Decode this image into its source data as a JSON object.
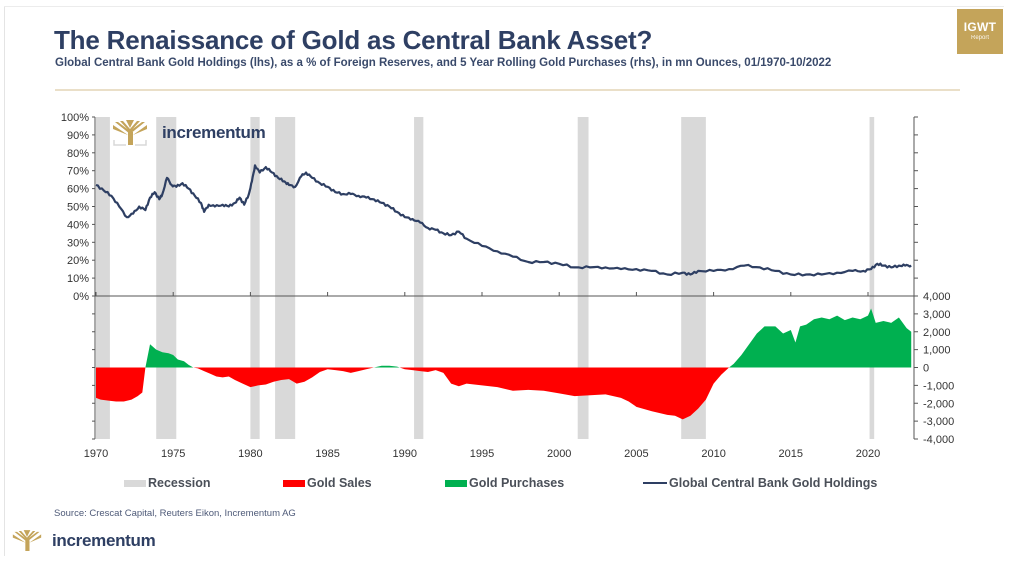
{
  "header": {
    "title": "The Renaissance of Gold as Central Bank Asset?",
    "subtitle": "Global Central Bank Gold Holdings (lhs), as a % of Foreign Reserves, and 5 Year Rolling Gold Purchases (rhs), in mn Ounces, 01/1970-10/2022",
    "badge_main": "IGWT",
    "badge_sub": "Report"
  },
  "branding": {
    "logo_text": "incrementum",
    "logo_color": "#c4a45a"
  },
  "source": "Source: Crescat Capital, Reuters Eikon, Incrementum AG",
  "colors": {
    "line": "#2e3f63",
    "sales": "#ff0000",
    "purchases": "#00b050",
    "recession": "#d9d9d9",
    "axis": "#555555"
  },
  "chart_data": {
    "type": "line+area",
    "title": "The Renaissance of Gold as Central Bank Asset?",
    "xlabel": "",
    "x_range": [
      1970,
      2022.8
    ],
    "x_ticks": [
      "1970",
      "1975",
      "1980",
      "1985",
      "1990",
      "1995",
      "2000",
      "2005",
      "2010",
      "2015",
      "2020"
    ],
    "upper_panel": {
      "axis": "left",
      "ylabel": "Global Central Bank Gold Holdings, % of Foreign Reserves",
      "ylim": [
        0,
        100
      ],
      "y_ticks": [
        "0%",
        "10%",
        "20%",
        "30%",
        "40%",
        "50%",
        "60%",
        "70%",
        "80%",
        "90%",
        "100%"
      ],
      "series": [
        {
          "name": "Global Central Bank Gold Holdings",
          "type": "line",
          "x": [
            1970,
            1970.5,
            1971,
            1971.5,
            1972,
            1972.4,
            1972.8,
            1973.2,
            1973.5,
            1973.8,
            1974.1,
            1974.3,
            1974.6,
            1974.9,
            1975.2,
            1975.6,
            1976,
            1976.4,
            1976.8,
            1977,
            1977.3,
            1977.7,
            1978.2,
            1978.6,
            1979,
            1979.3,
            1979.6,
            1979.9,
            1980.1,
            1980.3,
            1980.6,
            1981,
            1981.4,
            1981.8,
            1982.2,
            1982.5,
            1982.9,
            1983.3,
            1983.6,
            1984,
            1984.5,
            1985,
            1985.5,
            1986,
            1986.5,
            1987,
            1987.5,
            1988,
            1988.5,
            1989,
            1989.5,
            1990,
            1990.5,
            1991,
            1991.5,
            1992,
            1992.5,
            1993,
            1993.5,
            1994,
            1995,
            1996,
            1997,
            1998,
            1999,
            2000,
            2001,
            2002,
            2003,
            2004,
            2005,
            2006,
            2007,
            2008,
            2008.5,
            2009,
            2010,
            2011,
            2012,
            2013,
            2014,
            2015,
            2016,
            2017,
            2018,
            2019,
            2019.7,
            2020.2,
            2020.6,
            2021,
            2021.5,
            2022,
            2022.4,
            2022.8
          ],
          "values": [
            62,
            59,
            56,
            50,
            44,
            46,
            50,
            48,
            55,
            58,
            54,
            57,
            66,
            62,
            61,
            63,
            60,
            56,
            52,
            47,
            51,
            50,
            51,
            50,
            52,
            55,
            51,
            57,
            64,
            73,
            69,
            72,
            69,
            66,
            64,
            62,
            61,
            67,
            69,
            66,
            63,
            61,
            58,
            57,
            57,
            56,
            55,
            54,
            52,
            50,
            47,
            44,
            43,
            41,
            38,
            37,
            35,
            34,
            36,
            32,
            28,
            25,
            22,
            19,
            19,
            18,
            16,
            16,
            16,
            15,
            15,
            14,
            12,
            13,
            12,
            14,
            14,
            15,
            17,
            16,
            14,
            12,
            12,
            12,
            13,
            14,
            14,
            15,
            18,
            17,
            16,
            17,
            17,
            17
          ]
        },
        {
          "name": "Recession",
          "type": "bands",
          "ranges": [
            [
              1970.0,
              1970.9
            ],
            [
              1973.9,
              1975.2
            ],
            [
              1980.0,
              1980.6
            ],
            [
              1981.6,
              1982.9
            ],
            [
              1990.6,
              1991.2
            ],
            [
              2001.2,
              2001.9
            ],
            [
              2007.9,
              2009.5
            ],
            [
              2020.1,
              2020.4
            ]
          ]
        }
      ]
    },
    "lower_panel": {
      "axis": "right",
      "ylabel": "5 Year Rolling Gold Purchases, mn Ounces",
      "ylim": [
        -4000,
        4000
      ],
      "y_ticks": [
        "4,000",
        "3,000",
        "2,000",
        "1,000",
        "0",
        "-1,000",
        "-2,000",
        "-3,000",
        "-4,000"
      ],
      "series": [
        {
          "name": "5 Year Rolling Gold Purchases/Sales",
          "type": "area",
          "x": [
            1970,
            1970.3,
            1970.8,
            1971.3,
            1971.8,
            1972.3,
            1972.7,
            1973.0,
            1973.2,
            1973.5,
            1973.9,
            1974.3,
            1974.7,
            1975.0,
            1975.3,
            1975.7,
            1976.0,
            1976.3,
            1976.6,
            1977.0,
            1977.4,
            1977.8,
            1978.2,
            1978.6,
            1979.0,
            1979.5,
            1980.0,
            1980.5,
            1981.0,
            1981.5,
            1982.0,
            1982.5,
            1983.0,
            1983.5,
            1984.0,
            1984.5,
            1985.0,
            1985.5,
            1986.0,
            1986.5,
            1987.0,
            1987.5,
            1988.0,
            1988.5,
            1989.0,
            1989.5,
            1990.0,
            1990.5,
            1991.0,
            1991.5,
            1992.0,
            1992.5,
            1993.0,
            1993.5,
            1994.0,
            1995.0,
            1996.0,
            1997.0,
            1998.0,
            1999.0,
            2000.0,
            2001.0,
            2002.0,
            2003.0,
            2004.0,
            2004.5,
            2005.0,
            2006.0,
            2007.0,
            2007.5,
            2008.0,
            2008.5,
            2009.0,
            2009.5,
            2010.0,
            2010.5,
            2011.0,
            2011.3,
            2011.8,
            2012.3,
            2012.8,
            2013.3,
            2014.0,
            2014.5,
            2015.0,
            2015.3,
            2015.6,
            2016.0,
            2016.5,
            2017.0,
            2017.5,
            2018.0,
            2018.5,
            2019.0,
            2019.5,
            2020.0,
            2020.2,
            2020.5,
            2021.0,
            2021.5,
            2022.0,
            2022.5,
            2022.8
          ],
          "values": [
            -1700,
            -1800,
            -1850,
            -1900,
            -1900,
            -1800,
            -1600,
            -1400,
            0,
            1300,
            1000,
            850,
            800,
            700,
            450,
            350,
            150,
            0,
            -50,
            -200,
            -350,
            -500,
            -550,
            -500,
            -700,
            -900,
            -1100,
            -1000,
            -950,
            -800,
            -700,
            -650,
            -900,
            -800,
            -550,
            -250,
            -100,
            -150,
            -200,
            -300,
            -200,
            -100,
            0,
            100,
            100,
            50,
            -100,
            -150,
            -200,
            -250,
            -150,
            -300,
            -900,
            -1050,
            -900,
            -1000,
            -1100,
            -1300,
            -1250,
            -1300,
            -1450,
            -1600,
            -1550,
            -1500,
            -1700,
            -1900,
            -2200,
            -2450,
            -2650,
            -2700,
            -2900,
            -2700,
            -2300,
            -1800,
            -900,
            -400,
            0,
            200,
            700,
            1300,
            1900,
            2300,
            2300,
            1900,
            2100,
            1400,
            2300,
            2400,
            2700,
            2800,
            2700,
            2900,
            2650,
            2800,
            2700,
            2900,
            3300,
            2500,
            2600,
            2500,
            2800,
            2200,
            2000
          ]
        }
      ]
    },
    "legend": {
      "placement": "bottom",
      "entries": [
        {
          "label": "Recession",
          "color": "#d9d9d9",
          "kind": "swatch"
        },
        {
          "label": "Gold Sales",
          "color": "#ff0000",
          "kind": "swatch"
        },
        {
          "label": "Gold Purchases",
          "color": "#00b050",
          "kind": "swatch"
        },
        {
          "label": "Global Central Bank Gold Holdings",
          "color": "#2e3f63",
          "kind": "line"
        }
      ]
    }
  }
}
